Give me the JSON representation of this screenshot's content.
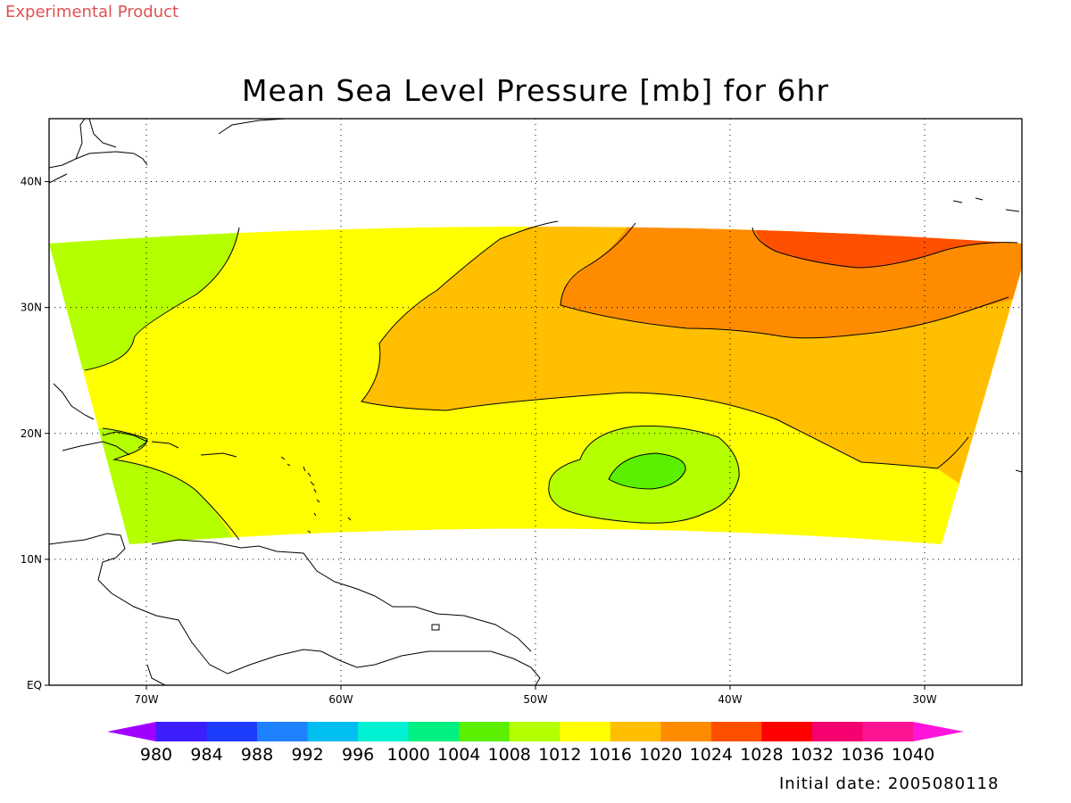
{
  "header": {
    "watermark": "Experimental Product",
    "title": "Mean Sea Level Pressure [mb] for 6hr"
  },
  "footer": {
    "initial_date": "Initial date: 2005080118"
  },
  "map": {
    "lat_range": [
      0,
      45
    ],
    "lon_range": [
      -75,
      -25
    ],
    "lat_ticks": [
      {
        "value": 0,
        "label": "EQ"
      },
      {
        "value": 10,
        "label": "10N"
      },
      {
        "value": 20,
        "label": "20N"
      },
      {
        "value": 30,
        "label": "30N"
      },
      {
        "value": 40,
        "label": "40N"
      }
    ],
    "lon_ticks": [
      {
        "value": -70,
        "label": "70W"
      },
      {
        "value": -60,
        "label": "60W"
      },
      {
        "value": -50,
        "label": "50W"
      },
      {
        "value": -40,
        "label": "40W"
      },
      {
        "value": -30,
        "label": "30W"
      }
    ],
    "grid": "dotted"
  },
  "colorbar": {
    "levels": [
      "980",
      "984",
      "988",
      "992",
      "996",
      "1000",
      "1004",
      "1008",
      "1012",
      "1016",
      "1020",
      "1024",
      "1028",
      "1032",
      "1036",
      "1040"
    ],
    "colors": [
      "#a000ff",
      "#3c1eff",
      "#1e3cff",
      "#1e82ff",
      "#00bef0",
      "#00f0d2",
      "#00f082",
      "#5af000",
      "#b4ff00",
      "#ffff00",
      "#ffbe00",
      "#ff8c00",
      "#ff5000",
      "#ff0000",
      "#f5006e",
      "#ff1493",
      "#ff14dc"
    ],
    "shaded_low": "#a000ff",
    "shaded_high": "#ff14dc"
  },
  "field_colors": {
    "c1008": "#b4ff00",
    "c1012": "#ffff00",
    "c1016": "#ffbe00",
    "c1020": "#ff8c00",
    "c1024": "#ff5000",
    "c1004": "#5af000"
  }
}
